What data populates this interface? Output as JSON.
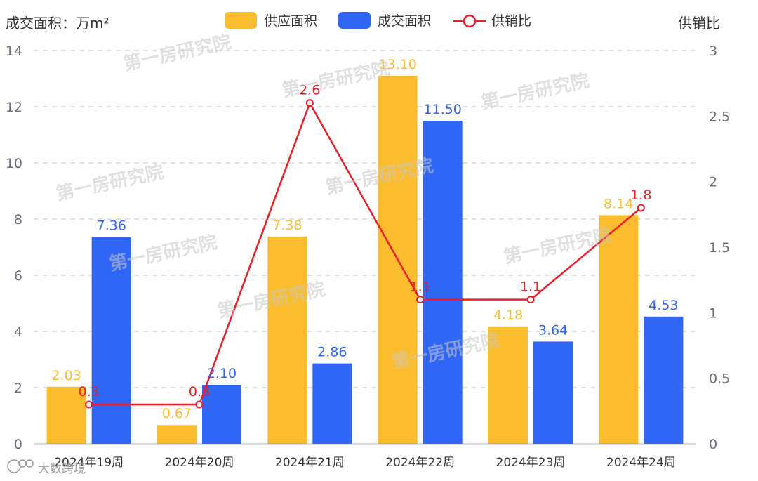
{
  "chart_data": {
    "type": "bar",
    "categories": [
      "2024年19周",
      "2024年20周",
      "2024年21周",
      "2024年22周",
      "2024年23周",
      "2024年24周"
    ],
    "series": [
      {
        "name": "供应面积",
        "type": "bar",
        "axis": "left",
        "color": "#fbbd2e",
        "values": [
          2.03,
          0.67,
          7.38,
          13.1,
          4.18,
          8.14
        ],
        "labels": [
          "2.03",
          "0.67",
          "7.38",
          "13.10",
          "4.18",
          "8.14"
        ]
      },
      {
        "name": "成交面积",
        "type": "bar",
        "axis": "left",
        "color": "#2f66f6",
        "values": [
          7.36,
          2.1,
          2.86,
          11.5,
          3.64,
          4.53
        ],
        "labels": [
          "7.36",
          "2.10",
          "2.86",
          "11.50",
          "3.64",
          "4.53"
        ]
      },
      {
        "name": "供销比",
        "type": "line",
        "axis": "right",
        "color": "#ee1c25",
        "values": [
          0.3,
          0.3,
          2.6,
          1.1,
          1.1,
          1.8
        ],
        "labels": [
          "0.3",
          "0.3",
          "2.6",
          "1.1",
          "1.1",
          "1.8"
        ]
      }
    ],
    "ylabel_left": "成交面积：万m²",
    "ylabel_right": "供销比",
    "ylim_left": [
      0,
      14
    ],
    "ylim_right": [
      0,
      3
    ],
    "yticks_left": [
      "0",
      "2",
      "4",
      "6",
      "8",
      "10",
      "12",
      "14"
    ],
    "yticks_right": [
      "0",
      "0.5",
      "1",
      "1.5",
      "2",
      "2.5",
      "3"
    ],
    "grid": true,
    "legend_position": "top-center"
  },
  "watermarks": [
    "第一房研究院",
    "第一房研究院",
    "第一房研究院",
    "第一房研究院",
    "第一房研究院",
    "第一房研究院",
    "第一房研究院",
    "第一房研究院"
  ],
  "footer_watermark": "大数跨境"
}
